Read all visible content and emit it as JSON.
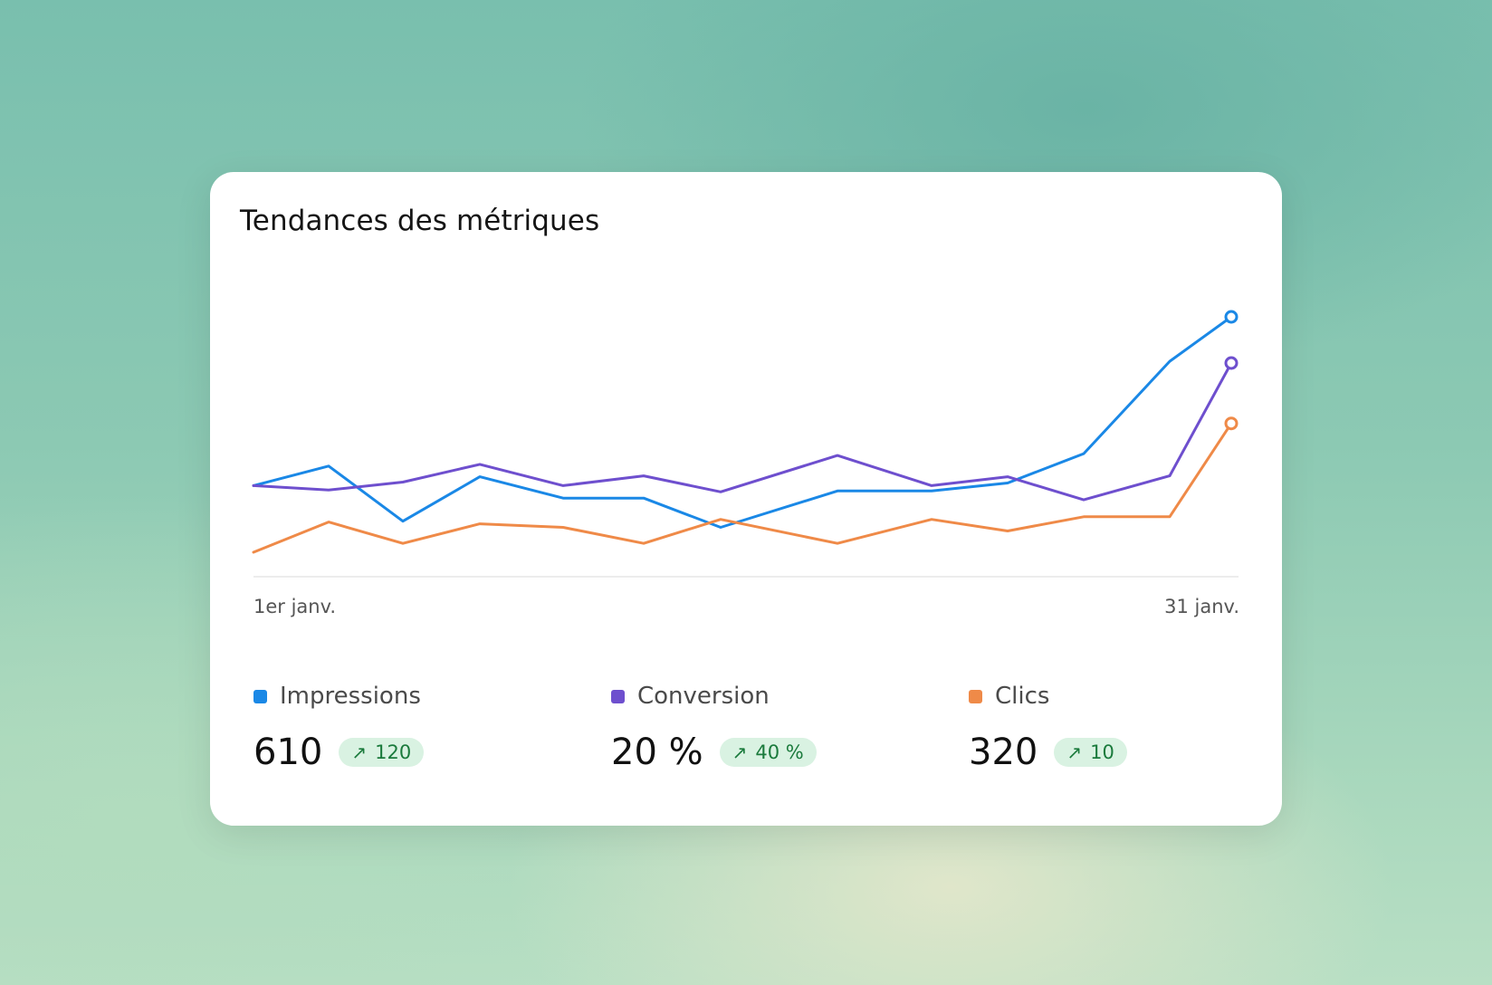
{
  "card": {
    "title": "Tendances des métriques"
  },
  "chart_data": {
    "type": "line",
    "title": "Tendances des métriques",
    "x_labels": [
      "1er janv.",
      "31 janv."
    ],
    "grid": false,
    "series": [
      {
        "name": "Impressions",
        "color": "#1a88e6",
        "values": [
          400,
          422,
          360,
          410,
          386,
          386,
          353,
          394,
          394,
          403,
          436,
          540,
          590
        ]
      },
      {
        "name": "Conversion",
        "color": "#6e4fce",
        "values": [
          400,
          395,
          404,
          424,
          400,
          411,
          393,
          434,
          400,
          410,
          384,
          411,
          538
        ]
      },
      {
        "name": "Clics",
        "color": "#ef8a48",
        "values": [
          325,
          359,
          335,
          357,
          353,
          335,
          362,
          335,
          362,
          349,
          365,
          365,
          470
        ]
      }
    ]
  },
  "legend": [
    {
      "name": "Impressions",
      "color": "#1a88e6",
      "value": "610",
      "delta": "120"
    },
    {
      "name": "Conversion",
      "color": "#6e4fce",
      "value": "20 %",
      "delta": "40 %"
    },
    {
      "name": "Clics",
      "color": "#ef8a48",
      "value": "320",
      "delta": "10"
    }
  ]
}
